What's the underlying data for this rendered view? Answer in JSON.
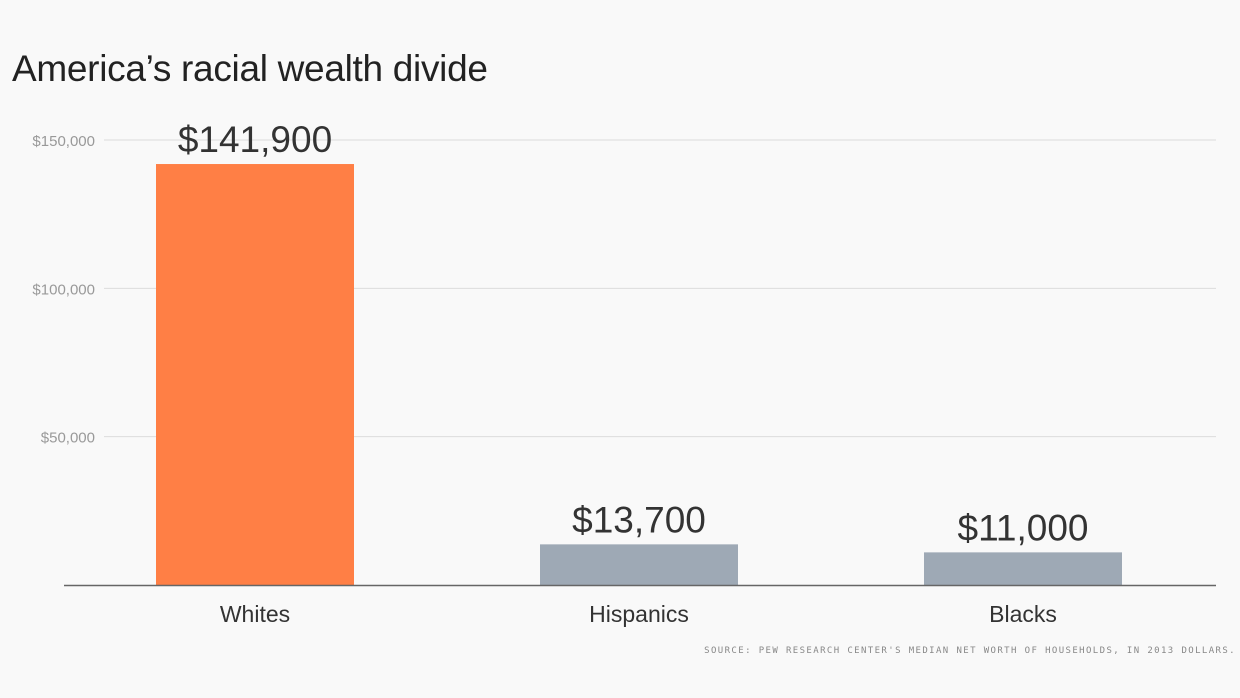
{
  "title": "America’s racial wealth divide",
  "source": "SOURCE: PEW RESEARCH CENTER'S MEDIAN NET WORTH OF HOUSEHOLDS, IN 2013 DOLLARS.",
  "colors": {
    "highlight": "#ff7f45",
    "bar": "#9ea9b5",
    "grid": "#dcdcdc",
    "axis": "#666666",
    "tick_text": "#999999",
    "label_text": "#333333"
  },
  "chart_data": {
    "type": "bar",
    "title": "America’s racial wealth divide",
    "categories": [
      "Whites",
      "Hispanics",
      "Blacks"
    ],
    "values": [
      141900,
      13700,
      11000
    ],
    "data_labels": [
      "$141,900",
      "$13,700",
      "$11,000"
    ],
    "highlight_index": 0,
    "yticks": [
      50000,
      100000,
      150000
    ],
    "ytick_labels": [
      "$50,000",
      "$100,000",
      "$150,000"
    ],
    "ylim": [
      0,
      150000
    ],
    "grid": true,
    "legend": "none",
    "xlabel": "",
    "ylabel": ""
  }
}
